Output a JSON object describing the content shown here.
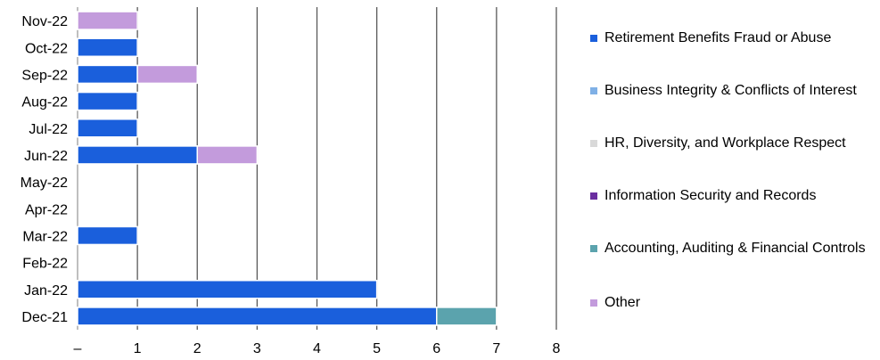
{
  "chart_data": {
    "type": "bar",
    "orientation": "horizontal",
    "stacked": true,
    "categories": [
      "Nov-22",
      "Oct-22",
      "Sep-22",
      "Aug-22",
      "Jul-22",
      "Jun-22",
      "May-22",
      "Apr-22",
      "Mar-22",
      "Feb-22",
      "Jan-22",
      "Dec-21"
    ],
    "series": [
      {
        "name": "Retirement Benefits Fraud or Abuse",
        "color": "#1a5fdc",
        "values": [
          0,
          1,
          1,
          1,
          1,
          2,
          0,
          0,
          1,
          0,
          5,
          6
        ]
      },
      {
        "name": "Business Integrity & Conflicts of Interest",
        "color": "#7fb0e6",
        "values": [
          0,
          0,
          0,
          0,
          0,
          0,
          0,
          0,
          0,
          0,
          0,
          0
        ]
      },
      {
        "name": "HR, Diversity, and Workplace Respect",
        "color": "#d9d9d9",
        "values": [
          0,
          0,
          0,
          0,
          0,
          0,
          0,
          0,
          0,
          0,
          0,
          0
        ]
      },
      {
        "name": "Information Security and Records",
        "color": "#6a2ea0",
        "values": [
          0,
          0,
          0,
          0,
          0,
          0,
          0,
          0,
          0,
          0,
          0,
          0
        ]
      },
      {
        "name": "Accounting, Auditing & Financial Controls",
        "color": "#5ba3ad",
        "values": [
          0,
          0,
          0,
          0,
          0,
          0,
          0,
          0,
          0,
          0,
          0,
          1
        ]
      },
      {
        "name": "Other",
        "color": "#c39bdc",
        "values": [
          1,
          0,
          1,
          0,
          0,
          1,
          0,
          0,
          0,
          0,
          0,
          0
        ]
      }
    ],
    "xlim": [
      0,
      8
    ],
    "x_ticks": [
      0,
      1,
      2,
      3,
      4,
      5,
      6,
      7,
      8
    ],
    "x_tick_labels": [
      "–",
      "1",
      "2",
      "3",
      "4",
      "5",
      "6",
      "7",
      "8"
    ],
    "grid": "vertical",
    "legend_position": "right",
    "title": "",
    "xlabel": "",
    "ylabel": ""
  }
}
